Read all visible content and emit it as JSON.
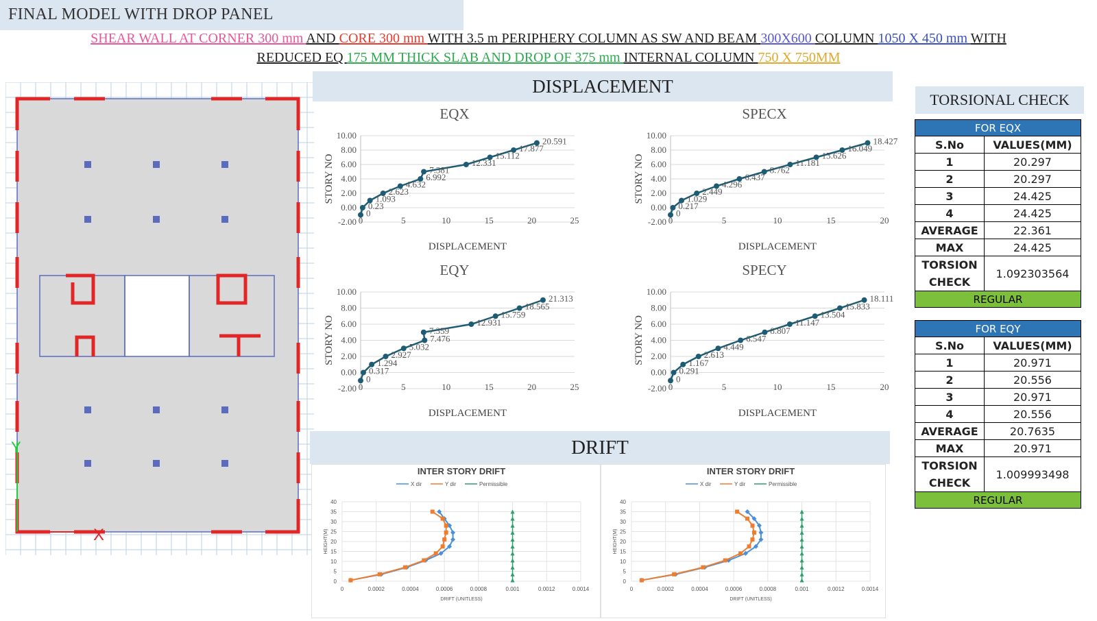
{
  "header": {
    "title": "FINAL MODEL WITH DROP PANEL",
    "line1": [
      {
        "text": "SHEAR WALL AT CORNER 300 mm ",
        "color": "#e8579a"
      },
      {
        "text": "AND ",
        "color": "#222222"
      },
      {
        "text": "CORE 300 mm ",
        "color": "#e63c2f"
      },
      {
        "text": "WITH 3.5 m PERIPHERY COLUMN AS SW AND BEAM ",
        "color": "#222222"
      },
      {
        "text": "300X600 ",
        "color": "#5a5ad0"
      },
      {
        "text": "COLUMN ",
        "color": "#222222"
      },
      {
        "text": "1050 X 450 mm ",
        "color": "#3a4fc0"
      },
      {
        "text": "WITH",
        "color": "#222222"
      }
    ],
    "line2": [
      {
        "text": "REDUCED EQ ",
        "color": "#222222"
      },
      {
        "text": "175 MM THICK SLAB AND DROP OF 375 mm ",
        "color": "#2eaa4f"
      },
      {
        "text": "INTERNAL COLUMN ",
        "color": "#222222"
      },
      {
        "text": "750 X 750MM",
        "color": "#e0a92a"
      }
    ]
  },
  "plan": {
    "axis_y_label": "Y",
    "axis_x_label": "X",
    "colors": {
      "wall": "#e02626",
      "column": "#5b6bbf",
      "grid": "#b9cfe8",
      "slab": "#d9d9d9",
      "axis_y": "#26c940",
      "axis_x": "#e02626"
    }
  },
  "displacement": {
    "section_title": "DISPLACEMENT",
    "line_color": "#1e5c73",
    "charts": [
      {
        "title": "EQX",
        "xlabel": "DISPLACEMENT",
        "ylabel": "STORY NO",
        "xticks": [
          "0",
          "5",
          "10",
          "15",
          "20",
          "25"
        ],
        "xlim": [
          0,
          25
        ],
        "yticks": [
          "-2.00",
          "0.00",
          "2.00",
          "4.00",
          "6.00",
          "8.00",
          "10.00"
        ],
        "ylim": [
          -2,
          10
        ],
        "points": [
          [
            0,
            -1
          ],
          [
            0.23,
            0
          ],
          [
            1.093,
            1
          ],
          [
            2.623,
            2
          ],
          [
            4.632,
            3
          ],
          [
            6.992,
            4
          ],
          [
            7.381,
            5
          ],
          [
            12.331,
            6
          ],
          [
            15.112,
            7
          ],
          [
            17.877,
            8
          ],
          [
            20.591,
            9
          ]
        ],
        "labels": [
          "0",
          "0.23",
          "1.093",
          "2.623",
          "4.632",
          "6.992",
          "7.381",
          "12.331",
          "15.112",
          "17.877",
          "20.591"
        ]
      },
      {
        "title": "SPECX",
        "xlabel": "DISPLACEMENT",
        "ylabel": "STORY NO",
        "xticks": [
          "0",
          "5",
          "10",
          "15",
          "20"
        ],
        "xlim": [
          0,
          20
        ],
        "yticks": [
          "-2.00",
          "0.00",
          "2.00",
          "4.00",
          "6.00",
          "8.00",
          "10.00"
        ],
        "ylim": [
          -2,
          10
        ],
        "points": [
          [
            0,
            -1
          ],
          [
            0.217,
            0
          ],
          [
            1.029,
            1
          ],
          [
            2.449,
            2
          ],
          [
            4.296,
            3
          ],
          [
            6.437,
            4
          ],
          [
            8.762,
            5
          ],
          [
            11.181,
            6
          ],
          [
            13.626,
            7
          ],
          [
            16.049,
            8
          ],
          [
            18.427,
            9
          ]
        ],
        "labels": [
          "0",
          "0.217",
          "1.029",
          "2.449",
          "4.296",
          "6.437",
          "8.762",
          "11.181",
          "13.626",
          "16.049",
          "18.427"
        ]
      },
      {
        "title": "EQY",
        "xlabel": "DISPLACEMENT",
        "ylabel": "STORY NO",
        "xticks": [
          "0",
          "5",
          "10",
          "15",
          "20",
          "25"
        ],
        "xlim": [
          0,
          25
        ],
        "yticks": [
          "-2.00",
          "0.00",
          "2.00",
          "4.00",
          "6.00",
          "8.00",
          "10.00"
        ],
        "ylim": [
          -2,
          10
        ],
        "points": [
          [
            0,
            -1
          ],
          [
            0.317,
            0
          ],
          [
            1.294,
            1
          ],
          [
            2.927,
            2
          ],
          [
            5.032,
            3
          ],
          [
            7.476,
            4
          ],
          [
            7.359,
            5
          ],
          [
            12.931,
            6
          ],
          [
            15.759,
            7
          ],
          [
            18.565,
            8
          ],
          [
            21.313,
            9
          ]
        ],
        "labels": [
          "0",
          "0.317",
          "1.294",
          "2.927",
          "5.032",
          "7.476",
          "7.359",
          "12.931",
          "15.759",
          "18.565",
          "21.313"
        ]
      },
      {
        "title": "SPECY",
        "xlabel": "DISPLACEMENT",
        "ylabel": "STORY NO",
        "xticks": [
          "0",
          "5",
          "10",
          "15",
          "20"
        ],
        "xlim": [
          0,
          20
        ],
        "yticks": [
          "-2.00",
          "0.00",
          "2.00",
          "4.00",
          "6.00",
          "8.00",
          "10.00"
        ],
        "ylim": [
          -2,
          10
        ],
        "points": [
          [
            0,
            -1
          ],
          [
            0.291,
            0
          ],
          [
            1.167,
            1
          ],
          [
            2.613,
            2
          ],
          [
            4.449,
            3
          ],
          [
            6.547,
            4
          ],
          [
            8.807,
            5
          ],
          [
            11.147,
            6
          ],
          [
            13.504,
            7
          ],
          [
            15.833,
            8
          ],
          [
            18.111,
            9
          ]
        ],
        "labels": [
          "0",
          "0.291",
          "1.167",
          "2.613",
          "4.449",
          "6.547",
          "8.807",
          "11.147",
          "13.504",
          "15.833",
          "18.111"
        ]
      }
    ]
  },
  "drift": {
    "section_title": "DRIFT",
    "charts": [
      {
        "title": "INTER STORY DRIFT",
        "xlabel": "DRIFT (UNITLESS)",
        "ylabel": "HEIGHT(M)",
        "xticks": [
          "0",
          "0.0002",
          "0.0004",
          "0.0006",
          "0.0008",
          "0.001",
          "0.0012",
          "0.0014"
        ],
        "xlim": [
          0,
          0.0014
        ],
        "yticks": [
          "0",
          "5",
          "10",
          "15",
          "20",
          "25",
          "30",
          "35",
          "40"
        ],
        "ylim": [
          0,
          40
        ],
        "legend": [
          "X dir",
          "Y dir",
          "Permissible"
        ],
        "colors": {
          "x": "#4a90d9",
          "y": "#ed7d31",
          "perm": "#2e9e6f"
        },
        "heights": [
          0.5,
          3.5,
          7,
          10.5,
          14,
          17.5,
          21,
          24.5,
          28,
          31.5,
          35
        ],
        "x_dir": [
          5e-05,
          0.00023,
          0.00038,
          0.00049,
          0.00058,
          0.00063,
          0.00065,
          0.00065,
          0.00063,
          0.0006,
          0.00057
        ],
        "y_dir": [
          5e-05,
          0.00022,
          0.00037,
          0.00048,
          0.00055,
          0.00059,
          0.0006,
          0.00061,
          0.00061,
          0.00059,
          0.00053
        ],
        "permissible": 0.001
      },
      {
        "title": "INTER STORY DRIFT",
        "xlabel": "DRIFT (UNITLESS)",
        "ylabel": "HEIGHT(M)",
        "xticks": [
          "0",
          "0.0002",
          "0.0004",
          "0.0006",
          "0.0008",
          "0.001",
          "0.0012",
          "0.0014"
        ],
        "xlim": [
          0,
          0.0014
        ],
        "yticks": [
          "0",
          "5",
          "10",
          "15",
          "20",
          "25",
          "30",
          "35",
          "40"
        ],
        "ylim": [
          0,
          40
        ],
        "legend": [
          "X dir",
          "Y dir",
          "Permissible"
        ],
        "colors": {
          "x": "#4a90d9",
          "y": "#ed7d31",
          "perm": "#2e9e6f"
        },
        "heights": [
          0.5,
          3.5,
          7,
          10.5,
          14,
          17.5,
          21,
          24.5,
          28,
          31.5,
          35
        ],
        "x_dir": [
          6e-05,
          0.00026,
          0.00043,
          0.00057,
          0.00067,
          0.00073,
          0.00076,
          0.00076,
          0.00075,
          0.00072,
          0.00068
        ],
        "y_dir": [
          6e-05,
          0.00025,
          0.00042,
          0.00055,
          0.00064,
          0.00069,
          0.00071,
          0.00072,
          0.00071,
          0.00068,
          0.00062
        ],
        "permissible": 0.001
      }
    ]
  },
  "torsion": {
    "title": "TORSIONAL CHECK",
    "tables": [
      {
        "heading": "FOR EQX",
        "col1": "S.No",
        "col2": "VALUES(MM)",
        "rows": [
          [
            "1",
            "20.297"
          ],
          [
            "2",
            "20.297"
          ],
          [
            "3",
            "24.425"
          ],
          [
            "4",
            "24.425"
          ]
        ],
        "average_label": "AVERAGE",
        "average": "22.361",
        "max_label": "MAX",
        "max": "24.425",
        "check_label": [
          "TORSION",
          "CHECK"
        ],
        "check": "1.092303564",
        "status": "REGULAR"
      },
      {
        "heading": "FOR EQY",
        "col1": "S.No",
        "col2": "VALUES(MM)",
        "rows": [
          [
            "1",
            "20.971"
          ],
          [
            "2",
            "20.556"
          ],
          [
            "3",
            "20.971"
          ],
          [
            "4",
            "20.556"
          ]
        ],
        "average_label": "AVERAGE",
        "average": "20.7635",
        "max_label": "MAX",
        "max": "20.971",
        "check_label": [
          "TORSION",
          "CHECK"
        ],
        "check": "1.009993498",
        "status": "REGULAR"
      }
    ]
  }
}
